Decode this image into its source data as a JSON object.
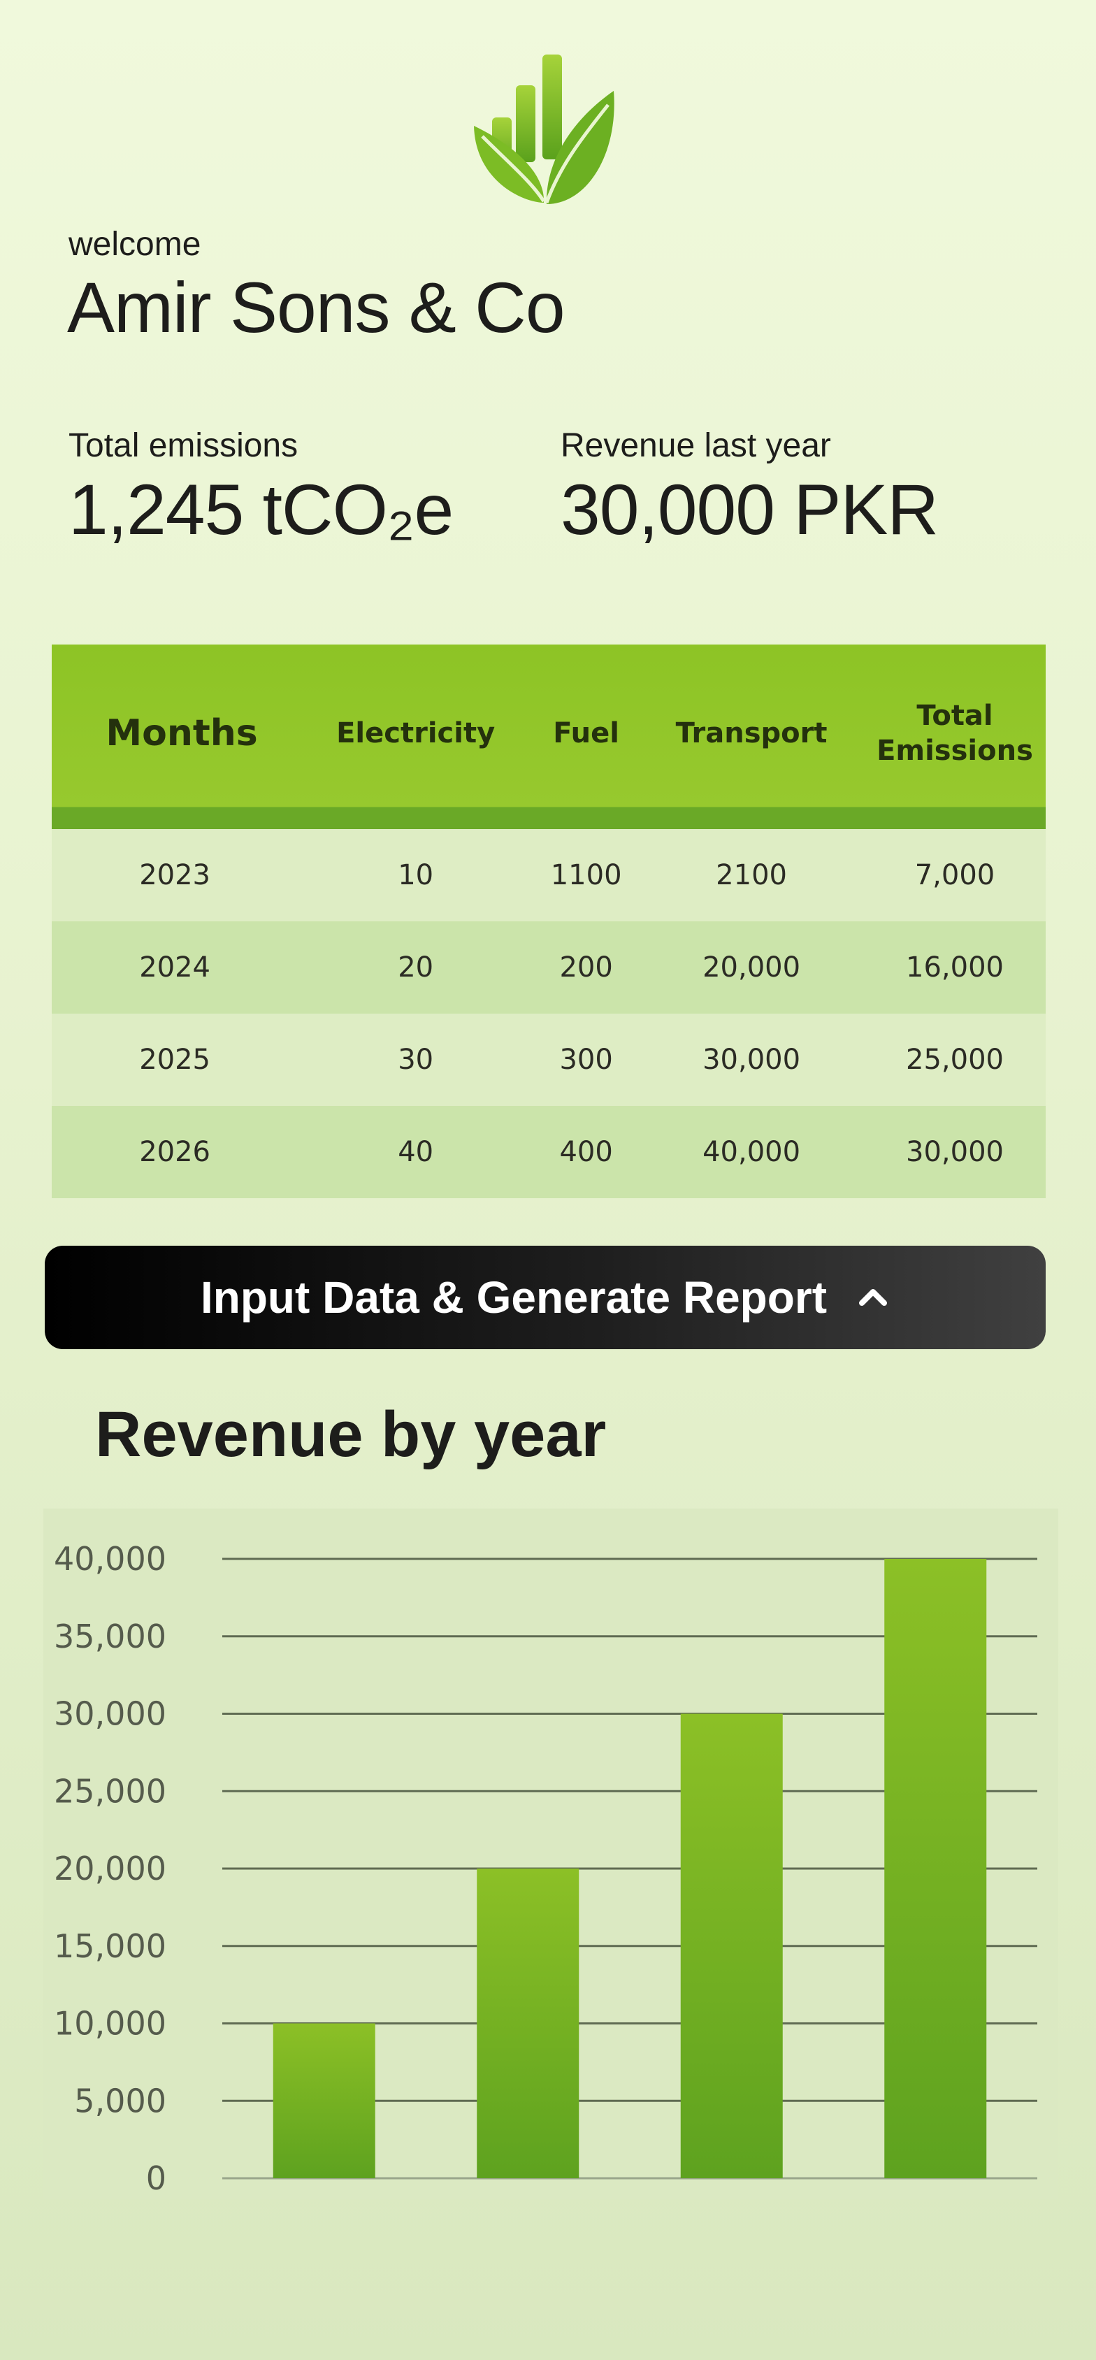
{
  "header": {
    "logo_icon": "leaf-bars-icon",
    "welcome_label": "welcome",
    "company_name": "Amir Sons & Co"
  },
  "stats": {
    "emissions_label": "Total emissions",
    "emissions_value": "1,245 tCO₂e",
    "revenue_label": "Revenue last year",
    "revenue_value": "30,000 PKR"
  },
  "table": {
    "headers": [
      "Months",
      "Electricity",
      "Fuel",
      "Transport",
      "Total Emissions"
    ],
    "rows": [
      [
        "2023",
        "10",
        "1100",
        "2100",
        "7,000"
      ],
      [
        "2024",
        "20",
        "200",
        "20,000",
        "16,000"
      ],
      [
        "2025",
        "30",
        "300",
        "30,000",
        "25,000"
      ],
      [
        "2026",
        "40",
        "400",
        "40,000",
        "30,000"
      ]
    ]
  },
  "actions": {
    "report_button_label": "Input Data & Generate Report",
    "report_button_icon": "chevron-up-icon"
  },
  "chart_section": {
    "title": "Revenue by year"
  },
  "colors": {
    "accent_green": "#8dc425",
    "dark_green": "#5ea21f",
    "button_black": "#000000"
  },
  "chart_data": {
    "type": "bar",
    "title": "Revenue by year",
    "categories": [
      "",
      "",
      "",
      ""
    ],
    "values": [
      10000,
      20000,
      30000,
      40000
    ],
    "ylim": [
      0,
      40000
    ],
    "yticks": [
      "0",
      "5,000",
      "10,000",
      "15,000",
      "20,000",
      "25,000",
      "30,000",
      "35,000",
      "40,000"
    ],
    "grid": true,
    "xlabel": "",
    "ylabel": ""
  }
}
